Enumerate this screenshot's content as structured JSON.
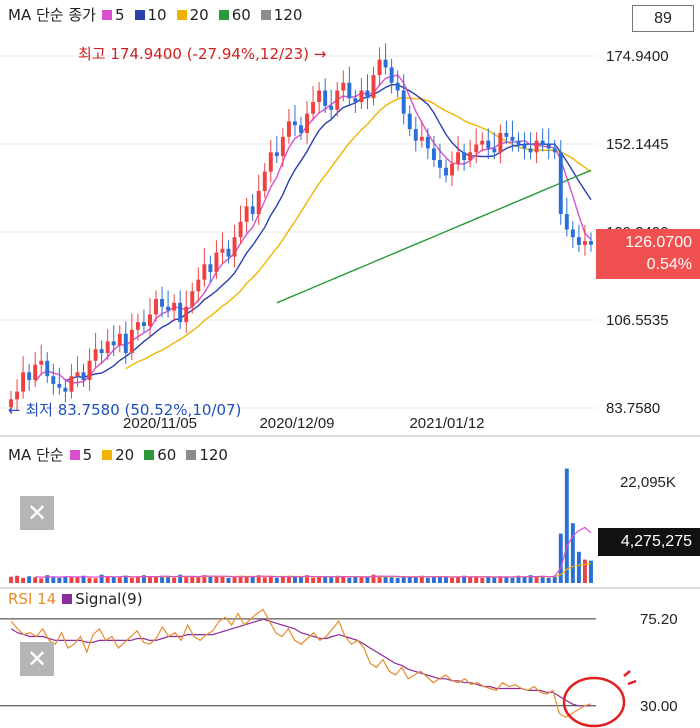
{
  "legend_main": {
    "prefix": "MA 단순 종가",
    "items": [
      {
        "label": "5",
        "color": "#d94fd0"
      },
      {
        "label": "10",
        "color": "#2a3fb0"
      },
      {
        "label": "20",
        "color": "#f0b400"
      },
      {
        "label": "60",
        "color": "#2a9a3a"
      },
      {
        "label": "120",
        "color": "#8c8c8c"
      }
    ]
  },
  "legend_volume": {
    "prefix": "MA 단순",
    "items": [
      {
        "label": "5",
        "color": "#d94fd0"
      },
      {
        "label": "20",
        "color": "#f0b400"
      },
      {
        "label": "60",
        "color": "#2a9a3a"
      },
      {
        "label": "120",
        "color": "#8c8c8c"
      }
    ]
  },
  "legend_rsi": {
    "items": [
      {
        "label": "RSI 14",
        "color": "#e88c2e"
      },
      {
        "label": "Signal(9)",
        "color": "#8a2c9a"
      }
    ]
  },
  "period_value": "89",
  "colors": {
    "up": "#f04040",
    "down": "#2a6fd6",
    "ma5": "#d94fd0",
    "ma10": "#2a3fb0",
    "ma20": "#f0b400",
    "ma60": "#2a9a3a",
    "rsi": "#e88c2e",
    "signal": "#8a2c9a",
    "annotation_high": "#d02020",
    "annotation_low": "#2050c0"
  },
  "current_price": "126.0700",
  "current_change": "0.54%",
  "current_volume": "4,275,275",
  "close_icon": "close-icon",
  "chart_data": [
    {
      "type": "candlestick",
      "x_ticks": [
        "2020/11/05",
        "2020/12/09",
        "2021/01/12"
      ],
      "y_ticks": [
        "174.9400",
        "152.1445",
        "129.3490",
        "106.5535",
        "83.7580"
      ],
      "ylim": [
        83.758,
        174.94
      ],
      "annotations": {
        "high": "최고 174.9400 (-27.94%,12/23) →",
        "low": "← 최저 83.7580 (50.52%,10/07)"
      },
      "close": [
        86,
        88,
        93,
        91,
        95,
        96,
        92,
        90,
        89,
        88,
        92,
        93,
        91,
        96,
        99,
        98,
        101,
        100,
        103,
        98,
        104,
        106,
        105,
        108,
        112,
        110,
        109,
        111,
        106,
        110,
        114,
        117,
        121,
        119,
        124,
        125,
        123,
        128,
        132,
        136,
        134,
        140,
        145,
        150,
        149,
        154,
        158,
        157,
        155,
        160,
        163,
        166,
        162,
        161,
        166,
        168,
        164,
        163,
        166,
        164,
        170,
        174,
        172,
        168,
        166,
        160,
        156,
        153,
        154,
        151,
        148,
        146,
        144,
        147,
        150,
        148,
        150,
        152,
        153,
        151,
        150,
        155,
        154,
        153,
        152,
        151,
        150,
        153,
        152,
        151,
        150,
        134,
        130,
        128,
        126,
        127,
        126.07
      ],
      "ma5_tail": [
        150,
        146,
        139,
        133,
        130,
        127
      ],
      "ma10_tail": [
        151,
        149,
        146,
        142,
        137,
        133
      ],
      "ma20_tail": [
        150,
        150,
        149,
        147,
        145,
        143
      ],
      "ma60": [
        [
          102,
          111.5
        ],
        [
          120,
          119
        ],
        [
          140,
          125
        ],
        [
          160,
          131
        ],
        [
          180,
          137
        ],
        [
          200,
          142
        ],
        [
          215,
          144.5
        ],
        [
          230,
          146
        ]
      ]
    },
    {
      "type": "bar",
      "title": "Volume",
      "y_ticks": [
        "22,095K",
        "4,275,275"
      ],
      "values": [
        1.2,
        1.4,
        1.0,
        1.3,
        1.1,
        0.9,
        1.5,
        1.2,
        1.0,
        1.3,
        1.1,
        1.2,
        1.4,
        1.0,
        0.9,
        1.6,
        1.3,
        1.2,
        1.1,
        1.4,
        1.0,
        1.2,
        1.5,
        1.1,
        1.3,
        1.4,
        1.2,
        1.0,
        1.6,
        1.2,
        1.3,
        1.1,
        1.5,
        1.4,
        1.2,
        1.3,
        1.0,
        1.1,
        1.4,
        1.2,
        1.3,
        1.5,
        1.1,
        1.2,
        1.0,
        1.3,
        1.4,
        1.2,
        1.1,
        1.5,
        1.0,
        1.2,
        1.3,
        1.1,
        1.4,
        1.2,
        1.0,
        1.3,
        1.1,
        1.2,
        1.6,
        1.4,
        1.2,
        1.1,
        1.0,
        1.3,
        1.2,
        1.1,
        1.4,
        1.0,
        1.2,
        1.3,
        1.1,
        1.0,
        1.2,
        1.4,
        1.1,
        1.3,
        1.0,
        1.2,
        1.1,
        1.3,
        1.2,
        1.0,
        1.4,
        1.1,
        1.5,
        1.2,
        1.3,
        1.0,
        1.4,
        9.5,
        22.0,
        11.5,
        6.0,
        4.5,
        4.3
      ]
    },
    {
      "type": "line",
      "title": "RSI 14",
      "y_ticks": [
        "75.20",
        "30.00"
      ],
      "rsi": [
        74,
        70,
        67,
        68,
        66,
        70,
        64,
        62,
        68,
        60,
        62,
        66,
        58,
        67,
        70,
        64,
        66,
        60,
        63,
        66,
        69,
        63,
        62,
        65,
        71,
        66,
        68,
        64,
        72,
        66,
        64,
        67,
        69,
        74,
        76,
        72,
        78,
        72,
        75,
        78,
        80,
        74,
        68,
        66,
        70,
        64,
        62,
        65,
        68,
        64,
        66,
        70,
        74,
        66,
        62,
        64,
        60,
        52,
        50,
        54,
        48,
        46,
        50,
        44,
        46,
        48,
        45,
        42,
        44,
        46,
        43,
        42,
        44,
        41,
        42,
        40,
        39,
        38,
        42,
        40,
        41,
        39,
        38,
        40,
        37,
        36,
        38,
        26,
        24,
        26,
        28,
        30,
        31
      ],
      "signal": [
        70,
        68,
        67,
        66,
        66,
        66,
        65,
        64,
        64,
        64,
        64,
        64,
        63,
        63,
        64,
        64,
        64,
        64,
        64,
        64,
        65,
        65,
        64,
        64,
        65,
        66,
        66,
        66,
        67,
        67,
        67,
        67,
        67,
        68,
        69,
        70,
        71,
        72,
        73,
        74,
        75,
        74,
        73,
        72,
        71,
        70,
        68,
        67,
        66,
        65,
        65,
        66,
        67,
        66,
        65,
        64,
        62,
        60,
        58,
        56,
        54,
        52,
        51,
        49,
        48,
        47,
        46,
        45,
        44,
        44,
        43,
        43,
        42,
        42,
        41,
        40,
        40,
        39,
        39,
        39,
        39,
        39,
        38,
        38,
        38,
        37,
        37,
        35,
        33,
        31,
        30,
        30,
        30
      ]
    }
  ]
}
